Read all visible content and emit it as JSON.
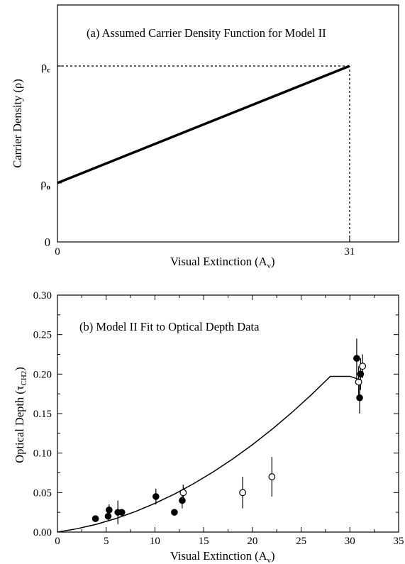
{
  "chart_data": [
    {
      "type": "line",
      "title": "(a) Assumed Carrier Density Function for Model II",
      "xlabel": "Visual Extinction (A",
      "xlabel_sub": "v",
      "xlabel_close": ")",
      "ylabel": "Carrier Density (ρ)",
      "xlim": [
        0,
        36.2
      ],
      "ylim": [
        0,
        1
      ],
      "x_ticks": [
        {
          "value": 0,
          "label": "0"
        },
        {
          "value": 31,
          "label": "31"
        }
      ],
      "y_ticks": [
        {
          "value": 0,
          "label": "0",
          "sub": ""
        },
        {
          "value": 0.335,
          "label": "ρ",
          "sub": "o"
        },
        {
          "value": 1,
          "label": "ρ",
          "sub": "c"
        }
      ],
      "series": [
        {
          "x": [
            0,
            31
          ],
          "y": [
            0.335,
            1
          ]
        }
      ],
      "reference_lines": [
        {
          "from": [
            0,
            1
          ],
          "to": [
            31,
            1
          ],
          "style": "dotted"
        },
        {
          "from": [
            31,
            0
          ],
          "to": [
            31,
            1
          ],
          "style": "dotted"
        }
      ],
      "grid": false
    },
    {
      "type": "scatter",
      "title": "(b) Model II Fit to Optical Depth Data",
      "xlabel": "Visual Extinction (A",
      "xlabel_sub": "v",
      "xlabel_close": ")",
      "ylabel": "Optical Depth (",
      "ylabel_tau": "τ",
      "ylabel_sub": "CH2",
      "ylabel_close": ")",
      "xlim": [
        0,
        35
      ],
      "ylim": [
        0,
        0.3
      ],
      "x_ticks": [
        0,
        5,
        10,
        15,
        20,
        25,
        30,
        35
      ],
      "y_ticks": [
        0.0,
        0.05,
        0.1,
        0.15,
        0.2,
        0.25,
        0.3
      ],
      "x_tick_labels": [
        "0",
        "5",
        "10",
        "15",
        "20",
        "25",
        "30",
        "35"
      ],
      "y_tick_labels": [
        "0.00",
        "0.05",
        "0.10",
        "0.15",
        "0.20",
        "0.25",
        "0.30"
      ],
      "series": [
        {
          "marker": "filled-circle",
          "points": [
            {
              "x": 3.9,
              "y": 0.017,
              "err": 0.004
            },
            {
              "x": 5.2,
              "y": 0.02,
              "err": 0.006
            },
            {
              "x": 5.3,
              "y": 0.028,
              "err": 0.007
            },
            {
              "x": 6.2,
              "y": 0.025,
              "err": 0.015
            },
            {
              "x": 6.6,
              "y": 0.025,
              "err": 0.004
            },
            {
              "x": 10.1,
              "y": 0.045,
              "err": 0.01
            },
            {
              "x": 12.0,
              "y": 0.025,
              "err": 0.003
            },
            {
              "x": 12.8,
              "y": 0.04,
              "err": 0.01
            },
            {
              "x": 30.7,
              "y": 0.22,
              "err": 0.025
            },
            {
              "x": 31.0,
              "y": 0.17,
              "err": 0.02
            },
            {
              "x": 31.1,
              "y": 0.2,
              "err": 0.02
            }
          ]
        },
        {
          "marker": "open-circle",
          "points": [
            {
              "x": 12.9,
              "y": 0.05,
              "err": 0.01
            },
            {
              "x": 19.0,
              "y": 0.05,
              "err": 0.02
            },
            {
              "x": 22.0,
              "y": 0.07,
              "err": 0.025
            },
            {
              "x": 30.9,
              "y": 0.19,
              "err": 0.02
            },
            {
              "x": 31.3,
              "y": 0.21,
              "err": 0.015
            }
          ]
        },
        {
          "marker": "none",
          "style": "fit-curve",
          "x": [
            0,
            2,
            4,
            6,
            8,
            10,
            12,
            14,
            16,
            18,
            20,
            22,
            24,
            26,
            28,
            30,
            31
          ],
          "y": [
            0,
            0.0042,
            0.0099,
            0.0172,
            0.026,
            0.0363,
            0.0481,
            0.0615,
            0.0763,
            0.0927,
            0.1106,
            0.13,
            0.1509,
            0.1733,
            0.1972,
            0.1972,
            0.193
          ]
        }
      ],
      "grid": false
    }
  ]
}
